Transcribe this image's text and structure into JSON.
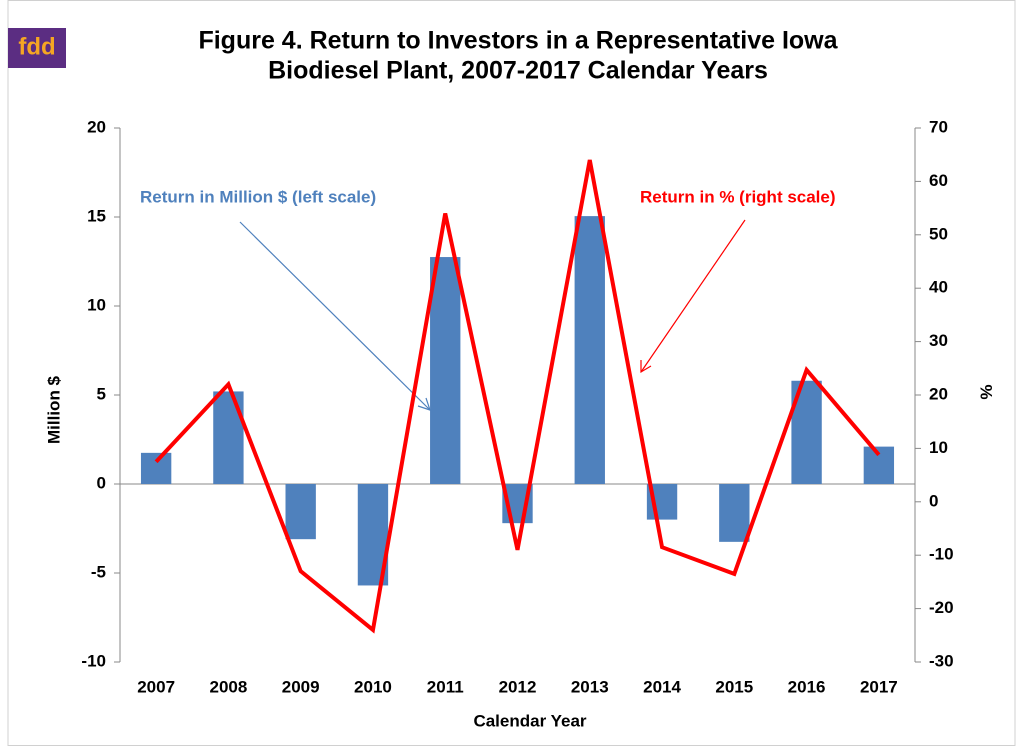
{
  "logo": "fdd",
  "chart_data": {
    "type": "bar_line",
    "title": [
      "Figure 4. Return to Investors in a Representative Iowa",
      "Biodiesel Plant, 2007-2017 Calendar Years"
    ],
    "x_label": "Calendar Year",
    "y_label": "Million $",
    "y2_label": "%",
    "annotations": [
      "Return in Million $ (left scale)",
      "Return in % (right scale)"
    ],
    "categories": [
      "2007",
      "2008",
      "2009",
      "2010",
      "2011",
      "2012",
      "2013",
      "2014",
      "2015",
      "2016",
      "2017"
    ],
    "series": [
      {
        "name": "Return in Million $",
        "type": "bar",
        "color": "#4f81bd",
        "values": [
          1.75,
          5.2,
          -3.1,
          -5.7,
          12.75,
          -2.2,
          15.05,
          -2.0,
          -3.25,
          5.8,
          2.1
        ]
      },
      {
        "name": "Return in %",
        "type": "line",
        "axis": "y2",
        "color": "#ff0000",
        "values": [
          7.5,
          22,
          -13,
          -24,
          54,
          -9,
          64,
          -8.5,
          -13.5,
          24.7,
          8.8
        ]
      }
    ],
    "ylim": [
      -10,
      20
    ],
    "yticks": [
      -10,
      -5,
      0,
      5,
      10,
      15,
      20
    ],
    "y2lim": [
      -30,
      70
    ],
    "y2ticks": [
      -30,
      -20,
      -10,
      0,
      10,
      20,
      30,
      40,
      50,
      60,
      70
    ]
  }
}
